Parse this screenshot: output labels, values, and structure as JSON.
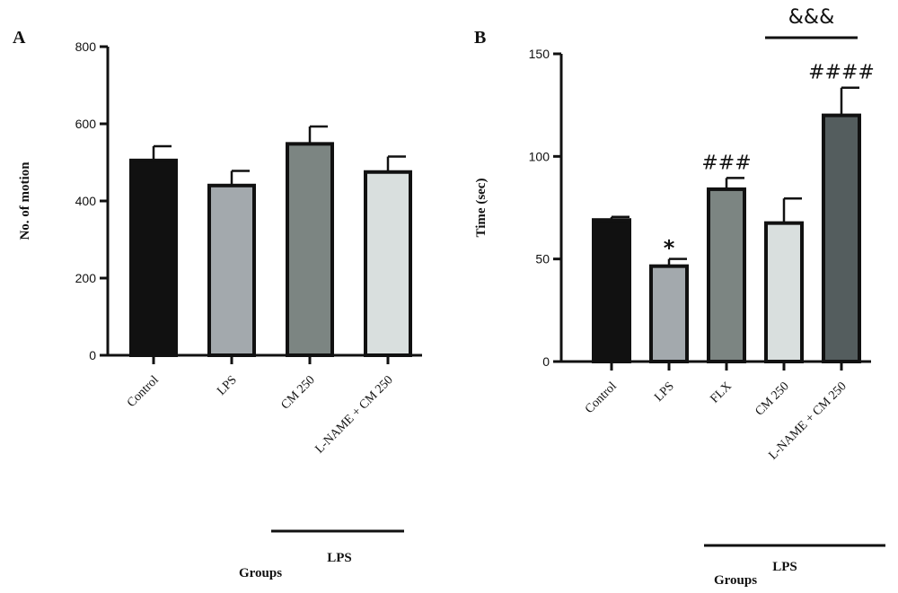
{
  "chart_data": [
    {
      "type": "bar",
      "panel": "A",
      "ylabel": "No. of motion",
      "xlabel": "Groups",
      "ylim": [
        0,
        800
      ],
      "yticks": [
        0,
        200,
        400,
        600,
        800
      ],
      "categories": [
        "Control",
        "LPS",
        "CM 250",
        "L-NAME + CM 250"
      ],
      "values": [
        505,
        440,
        548,
        475
      ],
      "errors": [
        37,
        38,
        45,
        40
      ],
      "colors": [
        "#111111",
        "#a3a9ad",
        "#7c8582",
        "#d9dfde"
      ],
      "annotations": [],
      "bracket_label": "LPS",
      "grid": false
    },
    {
      "type": "bar",
      "panel": "B",
      "ylabel": "Time (sec)",
      "xlabel": "Groups",
      "ylim": [
        0,
        150
      ],
      "yticks": [
        0,
        50,
        100,
        150
      ],
      "categories": [
        "Control",
        "LPS",
        "FLX",
        "CM 250",
        "L-NAME + CM 250"
      ],
      "values": [
        69,
        46.5,
        84,
        67.5,
        120
      ],
      "errors": [
        1.5,
        3.5,
        5.5,
        12,
        13.5
      ],
      "colors": [
        "#111111",
        "#a3a9ad",
        "#7c8582",
        "#d9dfde",
        "#545d5e"
      ],
      "annotations": [
        "",
        "*",
        "###",
        "",
        "####"
      ],
      "comparison_label": "&&&",
      "bracket_label": "LPS",
      "grid": false
    }
  ]
}
